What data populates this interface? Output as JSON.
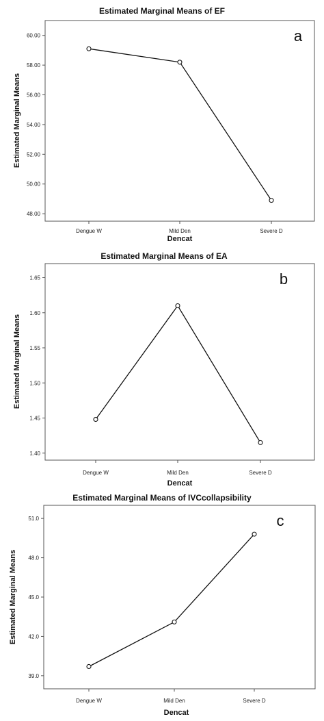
{
  "chart_data": [
    {
      "type": "line",
      "title": "Estimated Marginal Means of EF",
      "panel_label": "a",
      "xlabel": "Dencat",
      "ylabel": "Estimated Marginal Means",
      "categories": [
        "Dengue W",
        "Mild Den",
        "Severe D"
      ],
      "values": [
        59.1,
        58.2,
        48.9
      ],
      "ylim": [
        47.5,
        61.0
      ],
      "yticks": [
        48,
        50,
        52,
        54,
        56,
        58,
        60
      ],
      "ytick_labels": [
        "48.00",
        "50.00",
        "52.00",
        "54.00",
        "56.00",
        "58.00",
        "60.00"
      ],
      "grid": false,
      "marker": "open-circle"
    },
    {
      "type": "line",
      "title": "Estimated Marginal Means of EA",
      "panel_label": "b",
      "xlabel": "Dencat",
      "ylabel": "Estimated Marginal Means",
      "categories": [
        "Dengue W",
        "Mild Den",
        "Severe D"
      ],
      "values": [
        1.448,
        1.61,
        1.415
      ],
      "ylim": [
        1.39,
        1.67
      ],
      "yticks": [
        1.4,
        1.45,
        1.5,
        1.55,
        1.6,
        1.65
      ],
      "ytick_labels": [
        "1.40",
        "1.45",
        "1.50",
        "1.55",
        "1.60",
        "1.65"
      ],
      "grid": false,
      "marker": "open-circle"
    },
    {
      "type": "line",
      "title": "Estimated Marginal Means of IVCcollapsibility",
      "panel_label": "c",
      "xlabel": "Dencat",
      "ylabel": "Estimated Marginal Means",
      "categories": [
        "Dengue W",
        "Mild Den",
        "Severe D"
      ],
      "values": [
        39.7,
        43.1,
        49.8
      ],
      "ylim": [
        38.0,
        52.0
      ],
      "yticks": [
        39,
        42,
        45,
        48,
        51
      ],
      "ytick_labels": [
        "39.0",
        "42.0",
        "45.0",
        "48.0",
        "51.0"
      ],
      "grid": false,
      "marker": "open-circle"
    }
  ]
}
